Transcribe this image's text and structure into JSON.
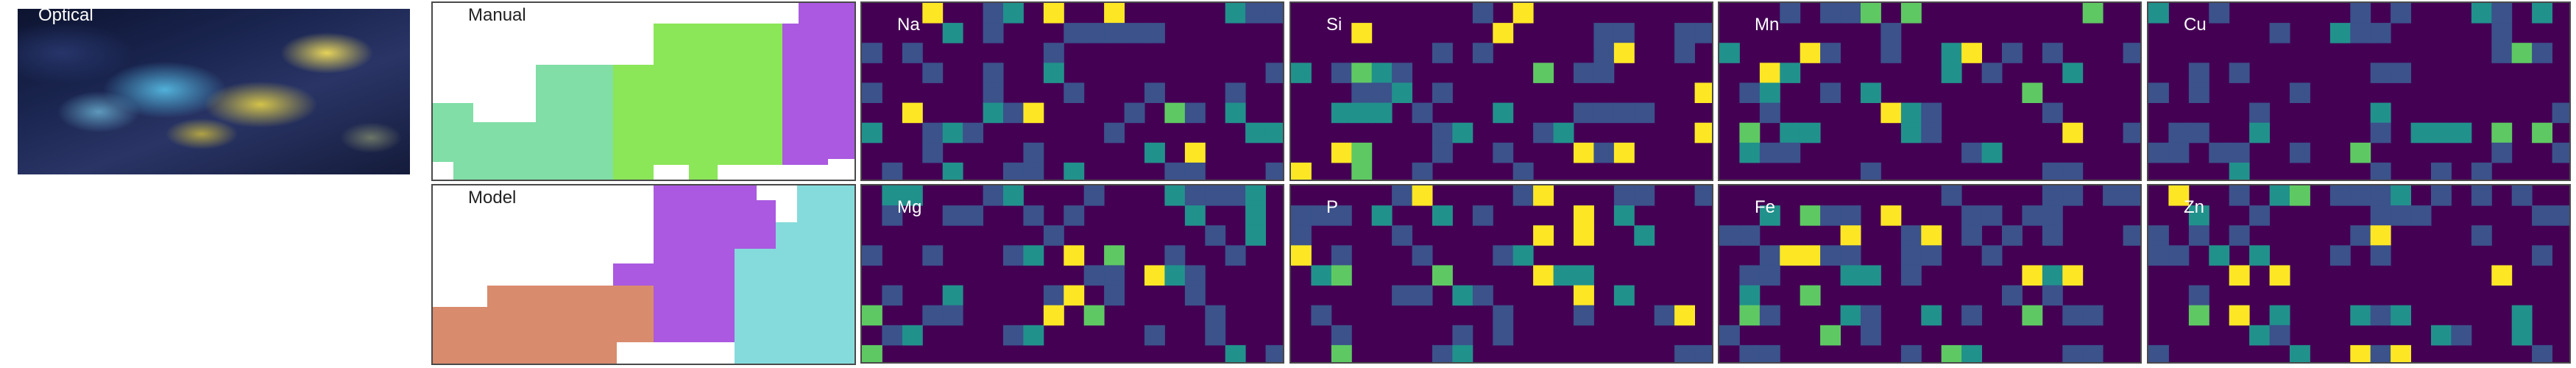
{
  "panels": {
    "optical": "Optical",
    "manual": "Manual",
    "model": "Model"
  },
  "elements": [
    {
      "symbol": "Na",
      "row": 0,
      "col": 0
    },
    {
      "symbol": "Si",
      "row": 0,
      "col": 1
    },
    {
      "symbol": "Mn",
      "row": 0,
      "col": 2
    },
    {
      "symbol": "Cu",
      "row": 0,
      "col": 3
    },
    {
      "symbol": "Mg",
      "row": 1,
      "col": 0
    },
    {
      "symbol": "P",
      "row": 1,
      "col": 1
    },
    {
      "symbol": "Fe",
      "row": 1,
      "col": 2
    },
    {
      "symbol": "Zn",
      "row": 1,
      "col": 3
    }
  ],
  "region_colors": {
    "green": "#8be658",
    "mint": "#80dea6",
    "purple": "#aa59e0",
    "teal": "#85dbdb",
    "salmon": "#d98b6e"
  },
  "colormap": [
    "#440154",
    "#3b528b",
    "#21918c",
    "#5ec962",
    "#fde725"
  ],
  "heatmap_grid": {
    "rows": 9,
    "cols": 21
  }
}
